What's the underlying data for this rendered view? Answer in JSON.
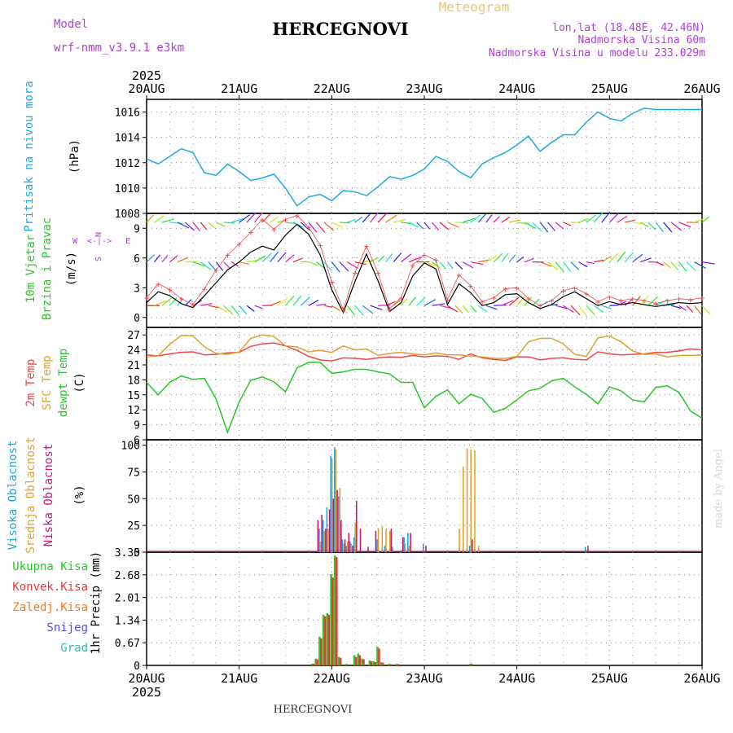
{
  "header": {
    "model_label": "Model",
    "model_name": "wrf-nmm_v3.9.1 e3km",
    "chart_kind": "Meteogram",
    "station": "HERCEGNOVI",
    "coords": "lon,lat (18.48E, 42.46N)",
    "elevation": "Nadmorska Visina 60m",
    "model_elevation": "Nadmorska Visina u modelu 233.029m"
  },
  "footer": {
    "station": "HERCEGNOVI",
    "credit": "made by Angel"
  },
  "colors": {
    "pressure": "#1fa8e8",
    "temp2m": "#f04848",
    "sfc_temp": "#e0a030",
    "dewpt": "#28c828",
    "cloud_high": "#18a8e0",
    "cloud_mid": "#e0a030",
    "cloud_low": "#c81880",
    "precip_total": "#28c828",
    "precip_conv": "#e83838",
    "precip_freez": "#f07820",
    "snow": "#5050e0",
    "grad": "#20c0b0",
    "wind_speed": "#000000",
    "gust": "#f04848",
    "compass": "#b040d8"
  },
  "chart_data": [
    {
      "type": "line",
      "id": "pressure",
      "title": "Pritisak na nivou mora",
      "ylabel": "(hPa)",
      "ylim": [
        1008,
        1017
      ],
      "yticks": [
        1008,
        1010,
        1012,
        1014,
        1016
      ],
      "x_top": [
        "20AUG",
        "21AUG",
        "22AUG",
        "23AUG",
        "24AUG",
        "25AUG",
        "26AUG"
      ],
      "x_top_year": "2025",
      "series": [
        {
          "name": "Pritisak",
          "x": [
            0,
            3,
            6,
            9,
            12,
            15,
            18,
            21,
            24,
            27,
            30,
            33,
            36,
            39,
            42,
            45,
            48,
            51,
            54,
            57,
            60,
            63,
            66,
            69,
            72,
            75,
            78,
            81,
            84,
            87,
            90,
            93,
            96,
            99,
            102,
            105,
            108,
            111,
            114,
            117,
            120,
            123,
            126,
            129,
            132,
            135,
            138,
            141,
            144
          ],
          "values": [
            1012.3,
            1011.9,
            1012.5,
            1013.1,
            1012.8,
            1011.2,
            1011.0,
            1011.9,
            1011.3,
            1010.6,
            1010.8,
            1011.1,
            1010.0,
            1008.6,
            1009.3,
            1009.5,
            1009.0,
            1009.8,
            1009.7,
            1009.4,
            1010.1,
            1010.9,
            1010.7,
            1011.0,
            1011.5,
            1012.5,
            1012.1,
            1011.3,
            1010.8,
            1011.9,
            1012.4,
            1012.8,
            1013.4,
            1014.1,
            1012.9,
            1013.6,
            1014.2,
            1014.2,
            1015.2,
            1016.0,
            1015.5,
            1015.3,
            1015.9,
            1016.3,
            1016.2,
            1016.2,
            1016.2,
            1016.2,
            1016.2
          ],
          "color": "#1fa8e8"
        }
      ]
    },
    {
      "type": "line",
      "id": "wind",
      "title": "10m Vjetar",
      "title2": "Brzina i Pravac",
      "ylabel": "(m/s)",
      "ylim": [
        -1,
        10.5
      ],
      "yticks": [
        0,
        3,
        6,
        9
      ],
      "compass": [
        "N",
        "S",
        "W",
        "E"
      ],
      "series": [
        {
          "name": "Brzina",
          "x": [
            0,
            3,
            6,
            9,
            12,
            15,
            18,
            21,
            24,
            27,
            30,
            33,
            36,
            39,
            42,
            45,
            48,
            51,
            54,
            57,
            60,
            63,
            66,
            69,
            72,
            75,
            78,
            81,
            84,
            87,
            90,
            93,
            96,
            99,
            102,
            105,
            108,
            111,
            114,
            117,
            120,
            123,
            126,
            129,
            132,
            135,
            138,
            141,
            144
          ],
          "values": [
            1.5,
            2.6,
            2.2,
            1.4,
            1.0,
            2.2,
            3.5,
            4.8,
            5.6,
            6.6,
            7.2,
            6.8,
            8.3,
            9.4,
            8.4,
            6.3,
            2.8,
            0.5,
            3.6,
            6.4,
            3.7,
            0.6,
            1.5,
            4.2,
            5.5,
            4.9,
            1.3,
            3.4,
            2.5,
            1.2,
            1.5,
            2.3,
            2.4,
            1.5,
            0.9,
            1.3,
            2.1,
            2.6,
            1.9,
            1.2,
            1.6,
            1.3,
            1.5,
            1.3,
            1.1,
            1.3,
            1.5,
            1.4,
            1.5
          ],
          "color": "#000000"
        },
        {
          "name": "Udari",
          "x": [
            0,
            3,
            6,
            9,
            12,
            15,
            18,
            21,
            24,
            27,
            30,
            33,
            36,
            39,
            42,
            45,
            48,
            51,
            54,
            57,
            60,
            63,
            66,
            69,
            72,
            75,
            78,
            81,
            84,
            87,
            90,
            93,
            96,
            99,
            102,
            105,
            108,
            111,
            114,
            117,
            120,
            123,
            126,
            129,
            132,
            135,
            138,
            141,
            144
          ],
          "values": [
            2.0,
            3.4,
            2.8,
            1.9,
            1.3,
            2.9,
            4.8,
            6.3,
            7.4,
            8.6,
            9.9,
            8.9,
            9.9,
            10.3,
            9.1,
            7.3,
            3.6,
            0.8,
            4.5,
            7.2,
            4.5,
            0.9,
            2.0,
            5.3,
            6.3,
            5.8,
            1.8,
            4.3,
            3.2,
            1.6,
            2.0,
            2.9,
            3.0,
            1.9,
            1.2,
            1.7,
            2.7,
            3.0,
            2.4,
            1.6,
            2.1,
            1.7,
            1.9,
            1.7,
            1.4,
            1.7,
            1.9,
            1.8,
            2.0
          ],
          "color": "#f04848"
        }
      ]
    },
    {
      "type": "line",
      "id": "temperature",
      "title": "2m Temp",
      "title2": "SFC Temp",
      "title3": "dewpt Temp",
      "ylabel": "(C)",
      "ylim": [
        6,
        28.5
      ],
      "yticks": [
        6,
        9,
        12,
        15,
        18,
        21,
        24,
        27
      ],
      "series": [
        {
          "name": "2m Temp",
          "x": [
            0,
            3,
            6,
            9,
            12,
            15,
            18,
            21,
            24,
            27,
            30,
            33,
            36,
            39,
            42,
            45,
            48,
            51,
            54,
            57,
            60,
            63,
            66,
            69,
            72,
            75,
            78,
            81,
            84,
            87,
            90,
            93,
            96,
            99,
            102,
            105,
            108,
            111,
            114,
            117,
            120,
            123,
            126,
            129,
            132,
            135,
            138,
            141,
            144
          ],
          "values": [
            23.0,
            22.8,
            23.2,
            23.5,
            23.6,
            23.0,
            23.1,
            23.4,
            23.5,
            24.7,
            25.2,
            25.4,
            24.8,
            23.9,
            22.7,
            22.0,
            21.8,
            22.4,
            22.3,
            22.1,
            22.4,
            22.6,
            22.5,
            22.9,
            22.6,
            22.8,
            22.7,
            22.1,
            23.2,
            22.4,
            22.1,
            21.9,
            22.6,
            22.6,
            22.0,
            22.3,
            22.4,
            22.1,
            22.0,
            23.6,
            23.2,
            23.0,
            23.1,
            23.2,
            23.5,
            23.5,
            23.8,
            24.2,
            24.0
          ],
          "color": "#f04848"
        },
        {
          "name": "SFC Temp",
          "x": [
            0,
            3,
            6,
            9,
            12,
            15,
            18,
            21,
            24,
            27,
            30,
            33,
            36,
            39,
            42,
            45,
            48,
            51,
            54,
            57,
            60,
            63,
            66,
            69,
            72,
            75,
            78,
            81,
            84,
            87,
            90,
            93,
            96,
            99,
            102,
            105,
            108,
            111,
            114,
            117,
            120,
            123,
            126,
            129,
            132,
            135,
            138,
            141,
            144
          ],
          "values": [
            22.6,
            22.8,
            25.1,
            26.9,
            26.8,
            24.6,
            23.3,
            23.1,
            23.6,
            26.3,
            27.0,
            26.7,
            24.8,
            24.6,
            23.6,
            23.9,
            23.5,
            24.8,
            24.0,
            24.2,
            22.9,
            23.3,
            23.5,
            23.2,
            23.0,
            23.4,
            23.0,
            23.0,
            22.8,
            22.6,
            22.3,
            22.3,
            22.7,
            25.6,
            26.3,
            26.3,
            25.2,
            23.1,
            22.7,
            26.4,
            26.8,
            25.6,
            23.8,
            23.1,
            23.2,
            22.6,
            22.9,
            22.9,
            23.0
          ],
          "color": "#e0a030"
        },
        {
          "name": "dewpt Temp",
          "x": [
            0,
            3,
            6,
            9,
            12,
            15,
            18,
            21,
            24,
            27,
            30,
            33,
            36,
            39,
            42,
            45,
            48,
            51,
            54,
            57,
            60,
            63,
            66,
            69,
            72,
            75,
            78,
            81,
            84,
            87,
            90,
            93,
            96,
            99,
            102,
            105,
            108,
            111,
            114,
            117,
            120,
            123,
            126,
            129,
            132,
            135,
            138,
            141,
            144
          ],
          "values": [
            17.5,
            15.0,
            17.5,
            18.8,
            18.1,
            18.3,
            14.2,
            7.5,
            13.6,
            17.9,
            18.6,
            17.6,
            15.6,
            20.4,
            21.5,
            21.5,
            19.3,
            19.6,
            20.1,
            20.1,
            19.6,
            19.2,
            17.5,
            17.5,
            12.4,
            14.7,
            16.0,
            13.2,
            15.1,
            14.3,
            11.5,
            12.3,
            14.0,
            15.8,
            16.3,
            17.8,
            18.3,
            16.6,
            15.1,
            13.2,
            16.6,
            15.8,
            14.0,
            13.6,
            16.5,
            16.8,
            15.5,
            11.8,
            10.3
          ],
          "color": "#28c828"
        }
      ]
    },
    {
      "type": "bar",
      "id": "clouds",
      "title": "Visoka Oblacnost",
      "title2": "Srednja Oblacnost",
      "title3": "Niska Oblacnost",
      "ylabel": "(%)",
      "ylim": [
        0,
        105
      ],
      "yticks": [
        0,
        25,
        50,
        75,
        100
      ],
      "series": [
        {
          "name": "Visoka",
          "x": [
            45,
            46,
            47,
            48,
            49,
            50,
            51,
            52,
            53,
            54,
            60,
            62,
            64,
            67,
            68,
            72,
            84,
            114
          ],
          "values": [
            22,
            30,
            42,
            90,
            98,
            52,
            12,
            6,
            10,
            14,
            12,
            6,
            5,
            14,
            18,
            8,
            6,
            5
          ],
          "color": "#18a8e0"
        },
        {
          "name": "Srednja",
          "x": [
            45,
            46,
            47,
            48,
            49,
            50,
            51,
            52,
            53,
            54,
            60,
            61,
            62,
            63,
            67,
            68,
            81,
            82,
            83,
            84,
            85,
            86
          ],
          "values": [
            10,
            20,
            22,
            88,
            96,
            60,
            8,
            10,
            8,
            28,
            22,
            24,
            22,
            20,
            8,
            6,
            22,
            80,
            97,
            96,
            95,
            6
          ],
          "color": "#e0a030"
        },
        {
          "name": "Niska",
          "x": [
            44,
            45,
            46,
            47,
            48,
            49,
            50,
            51,
            52,
            53,
            54,
            55,
            57,
            59,
            63,
            66,
            68,
            72,
            84,
            114
          ],
          "values": [
            30,
            35,
            22,
            40,
            50,
            58,
            30,
            12,
            18,
            6,
            48,
            22,
            5,
            20,
            22,
            14,
            18,
            6,
            12,
            6
          ],
          "color": "#c81880"
        }
      ]
    },
    {
      "type": "bar",
      "id": "precip",
      "title": "1hr Precip",
      "ylabel": "(mm)",
      "ylim": [
        0,
        3.35
      ],
      "yticks": [
        0,
        0.67,
        1.34,
        2.01,
        2.68,
        3.35
      ],
      "ytick_labels": [
        "0",
        "0.67",
        "1.34",
        "2.01",
        "2.68",
        "3.35"
      ],
      "x_bottom": [
        "20AUG",
        "21AUG",
        "22AUG",
        "23AUG",
        "24AUG",
        "25AUG",
        "26AUG"
      ],
      "x_bottom_year": "2025",
      "legend": [
        "Ukupna Kisa",
        "Konvek.Kisa",
        "Zaledj.Kisa",
        "Snijeg",
        "Grad"
      ],
      "series": [
        {
          "name": "Ukupna Kisa",
          "x": [
            43,
            44,
            45,
            46,
            47,
            48,
            49,
            50,
            52,
            54,
            55,
            56,
            58,
            59,
            60,
            61,
            63,
            65,
            84
          ],
          "values": [
            0.05,
            0.2,
            0.85,
            1.5,
            1.55,
            2.7,
            3.25,
            0.25,
            0.05,
            0.3,
            0.35,
            0.2,
            0.15,
            0.12,
            0.55,
            0.1,
            0.05,
            0.05,
            0.05
          ],
          "color": "#28c828"
        },
        {
          "name": "Konvek.Kisa",
          "x": [
            43,
            44,
            45,
            46,
            47,
            48,
            49,
            50,
            54,
            55,
            56,
            58,
            59,
            60,
            61,
            63,
            65,
            84
          ],
          "values": [
            0.05,
            0.18,
            0.8,
            1.45,
            1.5,
            2.6,
            3.2,
            0.22,
            0.25,
            0.3,
            0.18,
            0.12,
            0.1,
            0.5,
            0.08,
            0.04,
            0.04,
            0.05
          ],
          "color": "#e83838"
        }
      ]
    }
  ]
}
